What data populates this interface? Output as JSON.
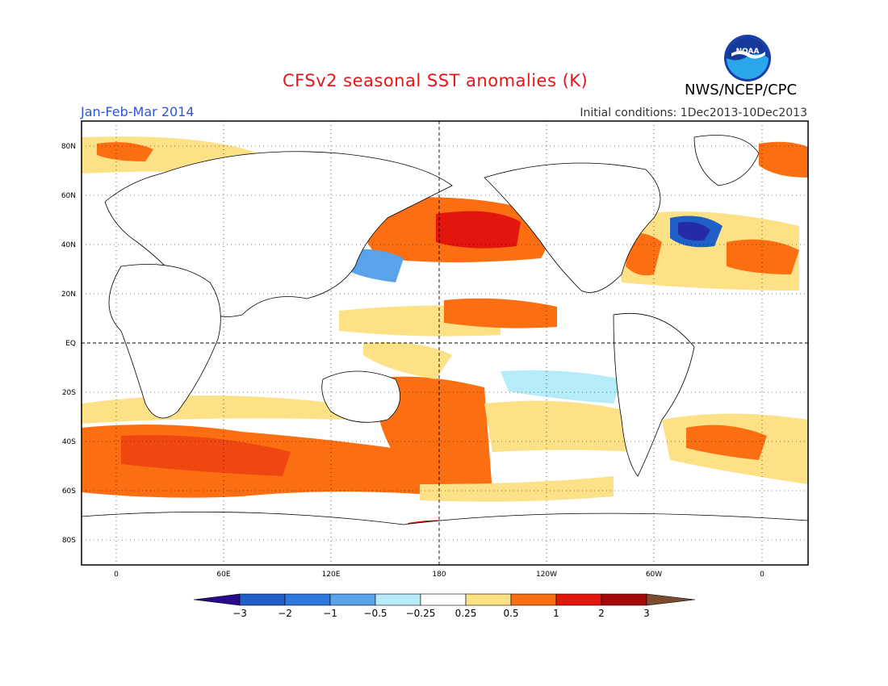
{
  "header": {
    "title": "CFSv2 seasonal SST anomalies (K)",
    "season": "Jan-Feb-Mar 2014",
    "initial_conditions": "Initial conditions: 1Dec2013-10Dec2013",
    "agency": "NWS/NCEP/CPC",
    "logo_text": "NOAA"
  },
  "map": {
    "lat_labels": [
      "80N",
      "60N",
      "40N",
      "20N",
      "EQ",
      "20S",
      "40S",
      "60S",
      "80S"
    ],
    "lon_labels": [
      "0",
      "60E",
      "120E",
      "180",
      "120W",
      "60W",
      "0"
    ]
  },
  "colorbar": {
    "labels": [
      "-3",
      "-2",
      "-1",
      "-0.5",
      "-0.25",
      "0.25",
      "0.5",
      "1",
      "2",
      "3"
    ],
    "colors": [
      "#2a0a8c",
      "#1f5fc6",
      "#2f78dc",
      "#5aa2ea",
      "#b5ecf8",
      "#ffffff",
      "#fde187",
      "#fc6e12",
      "#e3160e",
      "#a60808",
      "#7a4b2e"
    ]
  },
  "colors": {
    "title": "#e8151b",
    "season": "#2e55d6",
    "deep_warm": "#c81212",
    "warm": "#fc6e12",
    "light_warm": "#fde187",
    "light_cool": "#b5ecf8",
    "cool": "#5aa2ea",
    "deep_cool": "#1f5fc6"
  }
}
